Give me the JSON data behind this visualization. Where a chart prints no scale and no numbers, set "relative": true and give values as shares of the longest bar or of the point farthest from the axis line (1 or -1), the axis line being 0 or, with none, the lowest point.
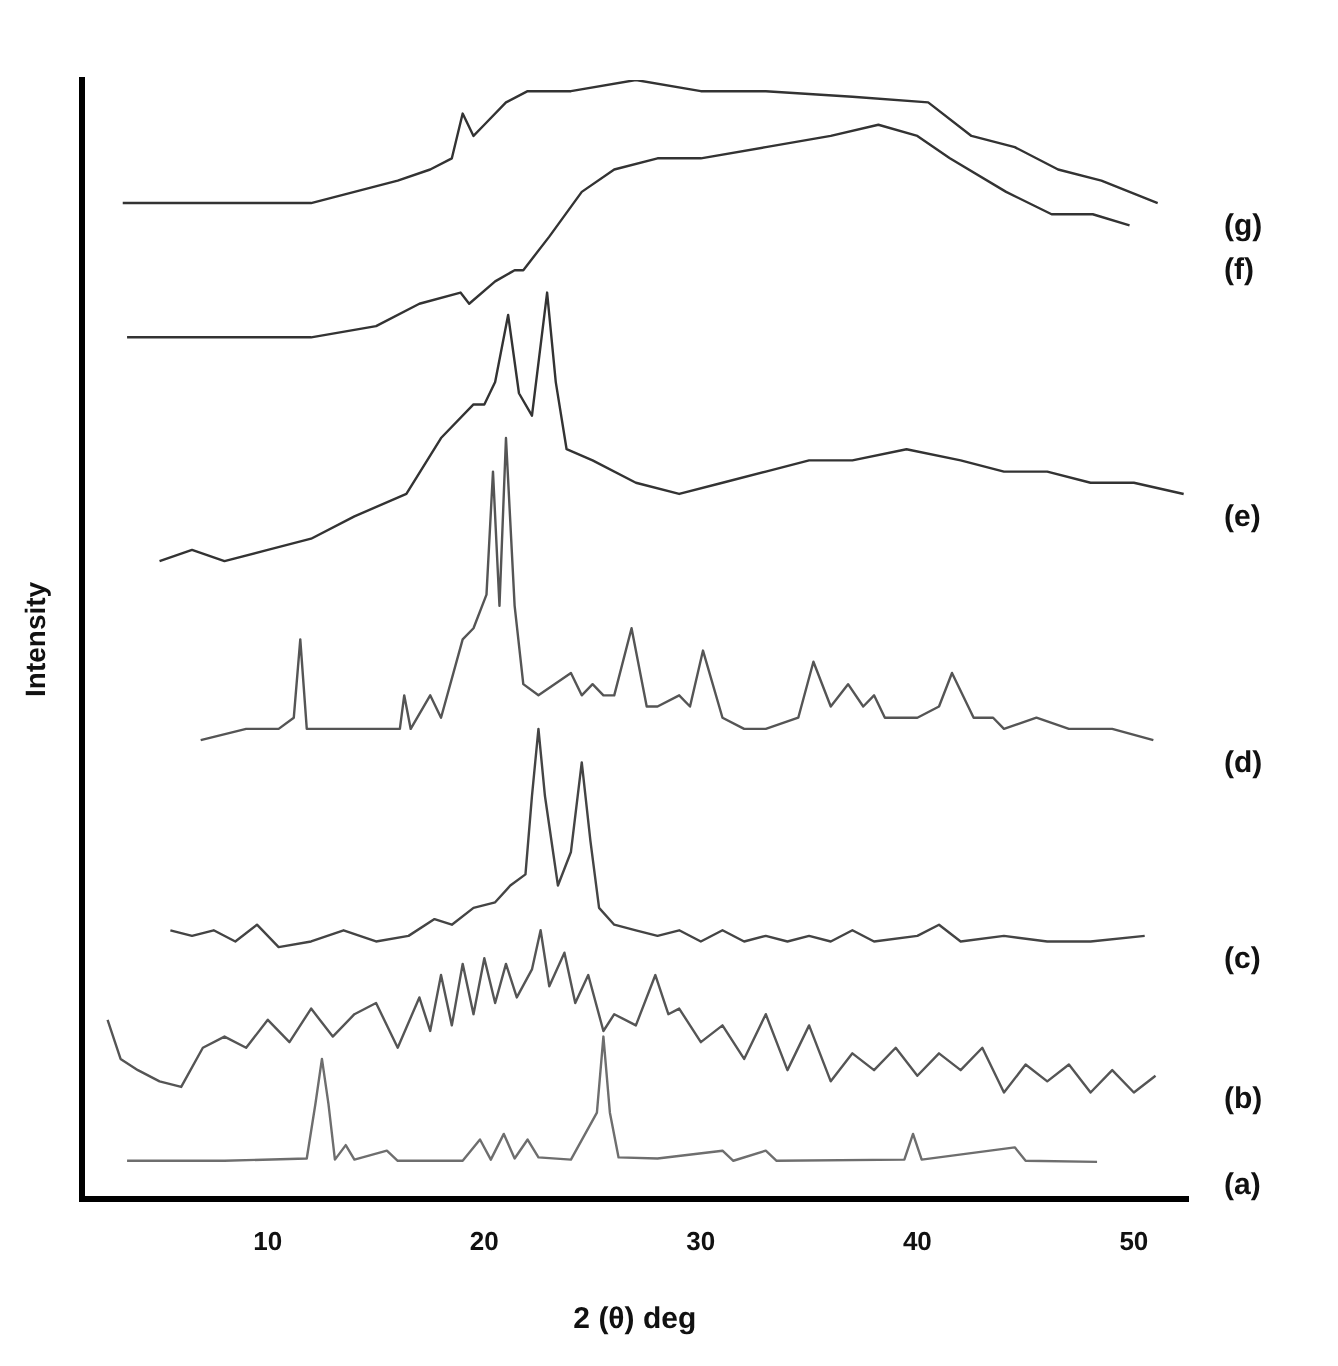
{
  "chart_data": {
    "type": "line",
    "relative": true,
    "xlabel": "2 (θ) deg",
    "ylabel": "Intensity",
    "xlim": [
      1.4,
      52.5
    ],
    "xticks": [
      10,
      20,
      30,
      40,
      50
    ],
    "grid": false,
    "legend": false,
    "marker": "none",
    "line_style": "solid",
    "series": [
      {
        "name": "(a)",
        "color": "#6e6e6e",
        "x": [
          3.5,
          8,
          11.8,
          12.2,
          12.5,
          12.8,
          13.1,
          13.6,
          14,
          15.5,
          16,
          19,
          19.8,
          20.3,
          20.9,
          21.4,
          22,
          22.5,
          24,
          25.2,
          25.5,
          25.8,
          26.2,
          28,
          31,
          31.5,
          33,
          33.5,
          39.4,
          39.8,
          40.2,
          44.5,
          45,
          48.3
        ],
        "values": [
          0.034,
          0.034,
          0.036,
          0.085,
          0.125,
          0.085,
          0.035,
          0.048,
          0.035,
          0.043,
          0.034,
          0.034,
          0.053,
          0.035,
          0.058,
          0.036,
          0.053,
          0.037,
          0.035,
          0.077,
          0.145,
          0.077,
          0.037,
          0.036,
          0.043,
          0.034,
          0.043,
          0.034,
          0.035,
          0.058,
          0.035,
          0.046,
          0.034,
          0.033
        ]
      },
      {
        "name": "(b)",
        "color": "#555555",
        "x": [
          2.6,
          3.2,
          4,
          5,
          6,
          7,
          8,
          9,
          10,
          11,
          12,
          13,
          14,
          15,
          16,
          17,
          17.5,
          18,
          18.5,
          19,
          19.5,
          20,
          20.5,
          21,
          21.5,
          22.2,
          22.6,
          23,
          23.7,
          24.2,
          24.8,
          25.5,
          26,
          27,
          27.9,
          28.5,
          29,
          30,
          31,
          32,
          33,
          34,
          35,
          36,
          37,
          38,
          39,
          40,
          41,
          42,
          43,
          44,
          45,
          46,
          47,
          48,
          49,
          50,
          51
        ],
        "values": [
          0.16,
          0.125,
          0.115,
          0.105,
          0.1,
          0.135,
          0.145,
          0.135,
          0.16,
          0.14,
          0.17,
          0.145,
          0.165,
          0.175,
          0.135,
          0.18,
          0.15,
          0.2,
          0.155,
          0.21,
          0.165,
          0.215,
          0.175,
          0.21,
          0.18,
          0.205,
          0.24,
          0.19,
          0.22,
          0.175,
          0.2,
          0.15,
          0.165,
          0.155,
          0.2,
          0.165,
          0.17,
          0.14,
          0.155,
          0.125,
          0.165,
          0.115,
          0.155,
          0.105,
          0.13,
          0.115,
          0.135,
          0.11,
          0.13,
          0.115,
          0.135,
          0.095,
          0.12,
          0.105,
          0.12,
          0.095,
          0.115,
          0.095,
          0.11
        ]
      },
      {
        "name": "(c)",
        "color": "#444444",
        "x": [
          5.5,
          6.5,
          7.5,
          8.5,
          9.5,
          10.5,
          12,
          13.5,
          15,
          16.5,
          17.7,
          18.5,
          19.5,
          20.5,
          21.2,
          21.9,
          22.2,
          22.5,
          22.8,
          23.4,
          24,
          24.5,
          24.9,
          25.3,
          26,
          27,
          28,
          29,
          30,
          31,
          32,
          33,
          34,
          35,
          36,
          37,
          38,
          40,
          41,
          42,
          44,
          46,
          48,
          50.5
        ],
        "values": [
          0.24,
          0.235,
          0.24,
          0.23,
          0.245,
          0.225,
          0.23,
          0.24,
          0.23,
          0.235,
          0.25,
          0.245,
          0.26,
          0.265,
          0.28,
          0.29,
          0.36,
          0.42,
          0.36,
          0.28,
          0.31,
          0.39,
          0.32,
          0.26,
          0.245,
          0.24,
          0.235,
          0.24,
          0.23,
          0.24,
          0.23,
          0.235,
          0.23,
          0.235,
          0.23,
          0.24,
          0.23,
          0.235,
          0.245,
          0.23,
          0.235,
          0.23,
          0.23,
          0.235
        ]
      },
      {
        "name": "(d)",
        "color": "#555555",
        "x": [
          6.9,
          9,
          10.5,
          11.2,
          11.5,
          11.8,
          14,
          16.1,
          16.3,
          16.6,
          17.5,
          18,
          19,
          19.5,
          20.1,
          20.4,
          20.7,
          21,
          21.4,
          21.8,
          22.5,
          24,
          24.5,
          25,
          25.5,
          26,
          26.8,
          27.5,
          28,
          29,
          29.5,
          30.1,
          31,
          32,
          33,
          34.5,
          35.2,
          36,
          36.8,
          37.5,
          38,
          38.5,
          40,
          41,
          41.6,
          42.6,
          43.5,
          44,
          45.5,
          47,
          49,
          50.9
        ],
        "values": [
          0.41,
          0.42,
          0.42,
          0.43,
          0.5,
          0.42,
          0.42,
          0.42,
          0.45,
          0.42,
          0.45,
          0.43,
          0.5,
          0.51,
          0.54,
          0.65,
          0.53,
          0.68,
          0.53,
          0.46,
          0.45,
          0.47,
          0.45,
          0.46,
          0.45,
          0.45,
          0.51,
          0.44,
          0.44,
          0.45,
          0.44,
          0.49,
          0.43,
          0.42,
          0.42,
          0.43,
          0.48,
          0.44,
          0.46,
          0.44,
          0.45,
          0.43,
          0.43,
          0.44,
          0.47,
          0.43,
          0.43,
          0.42,
          0.43,
          0.42,
          0.42,
          0.41
        ]
      },
      {
        "name": "(e)",
        "color": "#333333",
        "x": [
          5,
          6.5,
          8,
          10,
          12,
          14,
          16.4,
          18,
          19.5,
          20,
          20.5,
          21.1,
          21.6,
          22.2,
          22.9,
          23.3,
          23.8,
          25,
          27,
          29,
          31,
          33,
          35,
          37,
          39.5,
          42,
          44,
          46,
          48,
          50,
          52.3
        ],
        "values": [
          0.57,
          0.58,
          0.57,
          0.58,
          0.59,
          0.61,
          0.63,
          0.68,
          0.71,
          0.71,
          0.73,
          0.79,
          0.72,
          0.7,
          0.81,
          0.73,
          0.67,
          0.66,
          0.64,
          0.63,
          0.64,
          0.65,
          0.66,
          0.66,
          0.67,
          0.66,
          0.65,
          0.65,
          0.64,
          0.64,
          0.63
        ]
      },
      {
        "name": "(f)",
        "color": "#333333",
        "x": [
          3.5,
          12,
          15,
          17,
          18.9,
          19.3,
          20.5,
          21.4,
          21.8,
          23,
          24.5,
          26,
          28,
          30,
          33,
          36,
          38.2,
          40,
          41.5,
          44.1,
          46.2,
          48.1,
          49.8
        ],
        "values": [
          0.77,
          0.77,
          0.78,
          0.8,
          0.81,
          0.8,
          0.82,
          0.83,
          0.83,
          0.86,
          0.9,
          0.92,
          0.93,
          0.93,
          0.94,
          0.95,
          0.96,
          0.95,
          0.93,
          0.9,
          0.88,
          0.88,
          0.87
        ]
      },
      {
        "name": "(g)",
        "color": "#333333",
        "x": [
          3.3,
          8,
          12,
          14,
          16,
          17.5,
          18.5,
          19,
          19.5,
          20,
          21,
          22,
          24,
          27,
          30,
          33,
          37,
          40.5,
          42.5,
          44.5,
          46.5,
          48.5,
          51.1
        ],
        "values": [
          0.89,
          0.89,
          0.89,
          0.9,
          0.91,
          0.92,
          0.93,
          0.97,
          0.95,
          0.96,
          0.98,
          0.99,
          0.99,
          1,
          0.99,
          0.99,
          0.985,
          0.98,
          0.95,
          0.94,
          0.92,
          0.91,
          0.89
        ]
      }
    ]
  }
}
